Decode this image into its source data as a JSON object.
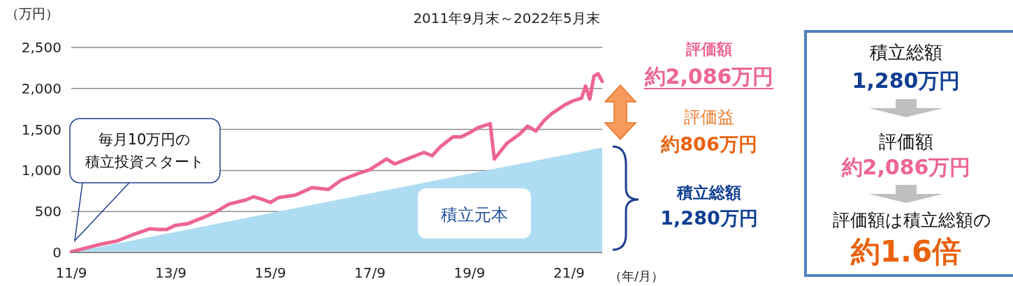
{
  "chart_data": {
    "type": "line",
    "subtitle": "2011年9月末～2022年5月末",
    "ylabel": "（万円）",
    "xlabel": "（年/月）",
    "xlim": [
      "2011-09",
      "2022-05"
    ],
    "ylim": [
      0,
      2500
    ],
    "xticks": [
      {
        "value": "2011-09",
        "label": "11/9"
      },
      {
        "value": "2013-09",
        "label": "13/9"
      },
      {
        "value": "2015-09",
        "label": "15/9"
      },
      {
        "value": "2017-09",
        "label": "17/9"
      },
      {
        "value": "2019-09",
        "label": "19/9"
      },
      {
        "value": "2021-09",
        "label": "21/9"
      }
    ],
    "yticks": [
      0,
      500,
      {
        "value": 1000,
        "label": "1,000"
      },
      {
        "value": 1500,
        "label": "1,500"
      },
      {
        "value": 2000,
        "label": "2,000"
      },
      {
        "value": 2500,
        "label": "2,500"
      }
    ],
    "grid": "y",
    "series": [
      {
        "name": "積立元本",
        "type": "area",
        "color": "#aedcf2",
        "x": [
          "2011-09",
          "2012-09",
          "2013-09",
          "2014-09",
          "2015-09",
          "2016-09",
          "2017-09",
          "2018-09",
          "2019-09",
          "2020-09",
          "2021-09",
          "2022-05"
        ],
        "values": [
          0,
          120,
          240,
          360,
          480,
          600,
          720,
          840,
          960,
          1080,
          1200,
          1280
        ]
      },
      {
        "type": "line",
        "color": "#ec6593",
        "x": [
          "2011-09",
          "2012-01",
          "2012-04",
          "2012-08",
          "2012-12",
          "2013-04",
          "2013-06",
          "2013-08",
          "2013-10",
          "2014-01",
          "2014-05",
          "2014-08",
          "2014-11",
          "2015-03",
          "2015-05",
          "2015-07",
          "2015-09",
          "2015-11",
          "2016-03",
          "2016-07",
          "2016-11",
          "2017-02",
          "2017-06",
          "2017-09",
          "2018-01",
          "2018-03",
          "2018-06",
          "2018-10",
          "2018-12",
          "2019-02",
          "2019-05",
          "2019-07",
          "2019-09",
          "2019-11",
          "2020-02",
          "2020-03",
          "2020-06",
          "2020-09",
          "2020-11",
          "2021-01",
          "2021-03",
          "2021-05",
          "2021-08",
          "2021-10",
          "2021-12",
          "2022-01",
          "2022-02",
          "2022-03",
          "2022-04",
          "2022-05"
        ],
        "values": [
          10,
          60,
          100,
          140,
          220,
          290,
          280,
          280,
          330,
          350,
          430,
          500,
          590,
          640,
          680,
          650,
          610,
          670,
          700,
          790,
          770,
          880,
          960,
          1010,
          1140,
          1080,
          1140,
          1220,
          1180,
          1290,
          1410,
          1410,
          1460,
          1520,
          1570,
          1140,
          1330,
          1440,
          1540,
          1480,
          1610,
          1700,
          1800,
          1850,
          1880,
          2030,
          1870,
          2150,
          2180,
          2086
        ]
      }
    ],
    "annotations": [
      "評価額",
      "約2,086万円",
      "評価益",
      "約806万円",
      "積立総額",
      "1,280万円",
      "積立総額",
      "1,280万円",
      "評価額",
      "約2,086万円",
      "評価額は積立総額の",
      "約1.6倍",
      "毎月10万円の積立投資スタート"
    ]
  }
}
